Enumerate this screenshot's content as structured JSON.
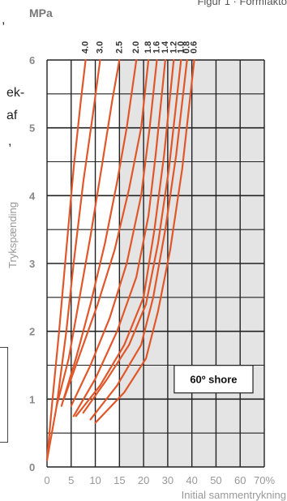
{
  "page": {
    "caption": "Figur 1 · Formfakto",
    "left_text_snippets": [
      ",",
      "ek-",
      "af",
      ","
    ]
  },
  "chart_data": {
    "type": "line",
    "title": "",
    "unit_label": "MPa",
    "ylabel": "Trykspænding",
    "xlabel": "Initial sammentrykning",
    "yticks": [
      "0",
      "1",
      "2",
      "3",
      "4",
      "5",
      "6"
    ],
    "xticks": [
      "0",
      "5",
      "10",
      "15",
      "20",
      "30",
      "40",
      "50",
      "60",
      "70%"
    ],
    "ylim": [
      0,
      6
    ],
    "legend_box": "60º shore",
    "shaded_from_x": "15",
    "series": [
      {
        "name": "4.0",
        "points": [
          [
            0,
            0.1
          ],
          [
            1,
            0.9
          ],
          [
            2.5,
            2
          ],
          [
            4,
            3.2
          ],
          [
            5.5,
            4.4
          ],
          [
            7,
            5.4
          ],
          [
            8,
            6
          ]
        ]
      },
      {
        "name": "3.0",
        "points": [
          [
            0,
            0.1
          ],
          [
            2,
            0.9
          ],
          [
            4,
            2
          ],
          [
            5.5,
            3
          ],
          [
            7.5,
            4.2
          ],
          [
            9.5,
            5.2
          ],
          [
            11,
            6
          ]
        ]
      },
      {
        "name": "2.5",
        "points": [
          [
            2,
            0.9
          ],
          [
            4.5,
            1.6
          ],
          [
            6.5,
            2.4
          ],
          [
            9,
            3.4
          ],
          [
            11.5,
            4.5
          ],
          [
            13.5,
            5.4
          ],
          [
            15,
            6
          ]
        ]
      },
      {
        "name": "2.0",
        "points": [
          [
            3,
            0.9
          ],
          [
            6,
            1.6
          ],
          [
            9,
            2.4
          ],
          [
            12,
            3.3
          ],
          [
            14.5,
            4.2
          ],
          [
            16.5,
            5
          ],
          [
            18.5,
            6
          ]
        ]
      },
      {
        "name": "1.8",
        "points": [
          [
            3.5,
            1
          ],
          [
            7,
            1.7
          ],
          [
            10.5,
            2.4
          ],
          [
            14,
            3.2
          ],
          [
            17,
            4.1
          ],
          [
            19.5,
            5
          ],
          [
            22,
            6
          ]
        ]
      },
      {
        "name": "1.6",
        "points": [
          [
            5,
            0.9
          ],
          [
            9,
            1.5
          ],
          [
            13,
            2.2
          ],
          [
            16.5,
            3
          ],
          [
            19.5,
            4
          ],
          [
            22.5,
            5
          ],
          [
            25.5,
            6
          ]
        ]
      },
      {
        "name": "1.4",
        "points": [
          [
            5.5,
            0.75
          ],
          [
            10,
            1.3
          ],
          [
            14.5,
            2
          ],
          [
            18.5,
            2.8
          ],
          [
            22,
            3.7
          ],
          [
            25,
            4.6
          ],
          [
            29,
            6
          ]
        ]
      },
      {
        "name": "1.2",
        "points": [
          [
            6,
            0.75
          ],
          [
            11,
            1.2
          ],
          [
            16,
            1.8
          ],
          [
            20,
            2.5
          ],
          [
            24.5,
            3.5
          ],
          [
            28.5,
            4.6
          ],
          [
            32.5,
            6
          ]
        ]
      },
      {
        "name": "1.0",
        "points": [
          [
            7.5,
            0.8
          ],
          [
            12.5,
            1.3
          ],
          [
            17,
            1.8
          ],
          [
            21,
            2.4
          ],
          [
            26,
            3.3
          ],
          [
            30.5,
            4.4
          ],
          [
            35.5,
            6
          ]
        ]
      },
      {
        "name": "0.8",
        "points": [
          [
            9,
            0.7
          ],
          [
            14.5,
            1.2
          ],
          [
            19.5,
            1.8
          ],
          [
            24,
            2.5
          ],
          [
            29,
            3.5
          ],
          [
            33.5,
            4.6
          ],
          [
            38,
            6
          ]
        ]
      },
      {
        "name": "0.6",
        "points": [
          [
            10,
            0.65
          ],
          [
            16,
            1.1
          ],
          [
            21,
            1.6
          ],
          [
            26,
            2.3
          ],
          [
            31,
            3.2
          ],
          [
            36,
            4.4
          ],
          [
            41,
            6
          ]
        ]
      }
    ]
  }
}
